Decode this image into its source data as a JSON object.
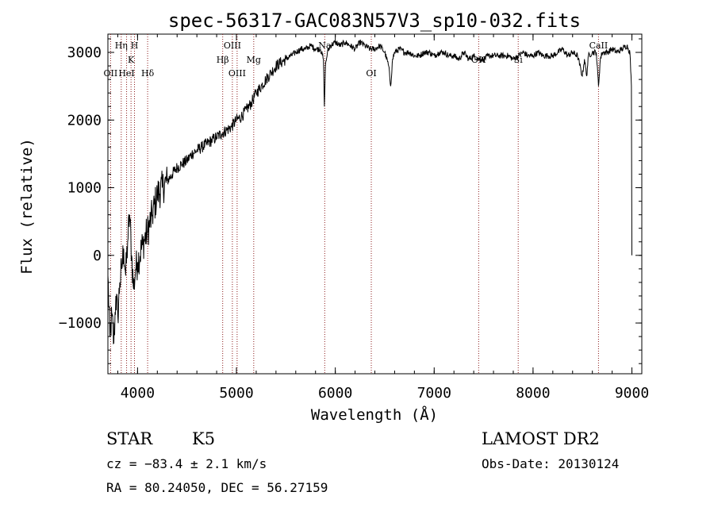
{
  "chart_data": {
    "type": "line",
    "title": "spec-56317-GAC083N57V3_sp10-032.fits",
    "xlabel": "Wavelength (Å)",
    "ylabel": "Flux (relative)",
    "xlim": [
      3700,
      9100
    ],
    "ylim": [
      -1750,
      3270
    ],
    "xticks": [
      4000,
      5000,
      6000,
      7000,
      8000,
      9000
    ],
    "yticks": [
      -1000,
      0,
      1000,
      2000,
      3000
    ],
    "xtick_labels": [
      "4000",
      "5000",
      "6000",
      "7000",
      "8000",
      "9000"
    ],
    "ytick_labels": [
      "−1000",
      "0",
      "1000",
      "2000",
      "3000"
    ],
    "grid": false,
    "series": [
      {
        "x": [
          3700,
          3720,
          3740,
          3760,
          3780,
          3800,
          3820,
          3840,
          3860,
          3880,
          3900,
          3920,
          3940,
          3960,
          3980,
          4000,
          4050,
          4100,
          4150,
          4200,
          4250,
          4300,
          4350,
          4400,
          4450,
          4500,
          4550,
          4600,
          4650,
          4700,
          4750,
          4800,
          4850,
          4900,
          4950,
          5000,
          5050,
          5100,
          5150,
          5200,
          5250,
          5300,
          5350,
          5400,
          5450,
          5500,
          5550,
          5600,
          5650,
          5700,
          5750,
          5800,
          5850,
          5880,
          5890,
          5895,
          5900,
          5920,
          5950,
          6000,
          6050,
          6100,
          6150,
          6200,
          6250,
          6300,
          6350,
          6400,
          6450,
          6500,
          6540,
          6560,
          6580,
          6600,
          6650,
          6700,
          6750,
          6800,
          6850,
          6900,
          6950,
          7000,
          7050,
          7100,
          7150,
          7200,
          7250,
          7300,
          7350,
          7400,
          7450,
          7500,
          7550,
          7600,
          7650,
          7700,
          7750,
          7800,
          7850,
          7900,
          7950,
          8000,
          8050,
          8100,
          8150,
          8200,
          8250,
          8300,
          8350,
          8400,
          8450,
          8498,
          8520,
          8542,
          8560,
          8600,
          8640,
          8662,
          8680,
          8700,
          8750,
          8800,
          8850,
          8900,
          8950,
          8980,
          8995,
          9000
        ],
        "y": [
          -300,
          -1200,
          -900,
          -1300,
          -600,
          -900,
          -400,
          -200,
          100,
          -300,
          200,
          600,
          0,
          -500,
          -200,
          -100,
          150,
          350,
          600,
          900,
          1000,
          1100,
          1200,
          1300,
          1350,
          1400,
          1500,
          1550,
          1600,
          1650,
          1700,
          1750,
          1800,
          1850,
          1900,
          2000,
          2050,
          2150,
          2250,
          2400,
          2500,
          2600,
          2700,
          2800,
          2850,
          2900,
          2950,
          3000,
          3050,
          3050,
          3100,
          3050,
          3050,
          2900,
          2200,
          2500,
          2800,
          3000,
          3100,
          3150,
          3100,
          3150,
          3100,
          3050,
          3150,
          3100,
          3050,
          3050,
          3100,
          3000,
          2800,
          2500,
          2900,
          3000,
          3050,
          3000,
          3000,
          2950,
          2950,
          3000,
          3000,
          2950,
          3000,
          3000,
          2950,
          2950,
          2900,
          3000,
          2900,
          2950,
          2900,
          2900,
          2950,
          2950,
          2950,
          2950,
          2950,
          2900,
          2950,
          3000,
          2950,
          2950,
          3000,
          2950,
          2950,
          2950,
          3000,
          3050,
          2950,
          3000,
          2950,
          2650,
          2900,
          2650,
          2950,
          3000,
          3000,
          2500,
          2900,
          3000,
          3000,
          3050,
          3000,
          3050,
          3100,
          3000,
          2500,
          0
        ]
      }
    ],
    "lines": [
      {
        "label": "OII",
        "x": 3727,
        "row": 3
      },
      {
        "label": "Hη",
        "x": 3835,
        "row": 1
      },
      {
        "label": "HeI",
        "x": 3889,
        "row": 3
      },
      {
        "label": "K",
        "x": 3934,
        "row": 2
      },
      {
        "label": "H",
        "x": 3969,
        "row": 1
      },
      {
        "label": "Hδ",
        "x": 4102,
        "row": 3
      },
      {
        "label": "Hβ",
        "x": 4861,
        "row": 2
      },
      {
        "label": "OIII",
        "x": 4959,
        "row": 1
      },
      {
        "label": "OIII",
        "x": 5007,
        "row": 3
      },
      {
        "label": "Mg",
        "x": 5175,
        "row": 2
      },
      {
        "label": "Na",
        "x": 5893,
        "row": 1
      },
      {
        "label": "OI",
        "x": 6364,
        "row": 3
      },
      {
        "label": "OH",
        "x": 7450,
        "row": 2
      },
      {
        "label": "Si",
        "x": 7850,
        "row": 2
      },
      {
        "label": "CaII",
        "x": 8662,
        "row": 1
      }
    ]
  },
  "info": {
    "object_class": "STAR",
    "subclass": "K5",
    "survey": "LAMOST DR2",
    "cz": "cz = −83.4 ± 2.1 km/s",
    "obs_date": "Obs-Date: 20130124",
    "coords": "RA =  80.24050, DEC =  56.27159"
  },
  "colors": {
    "spectrum": "#000000",
    "line_markers": "#8b1a1a",
    "axes": "#000000"
  }
}
